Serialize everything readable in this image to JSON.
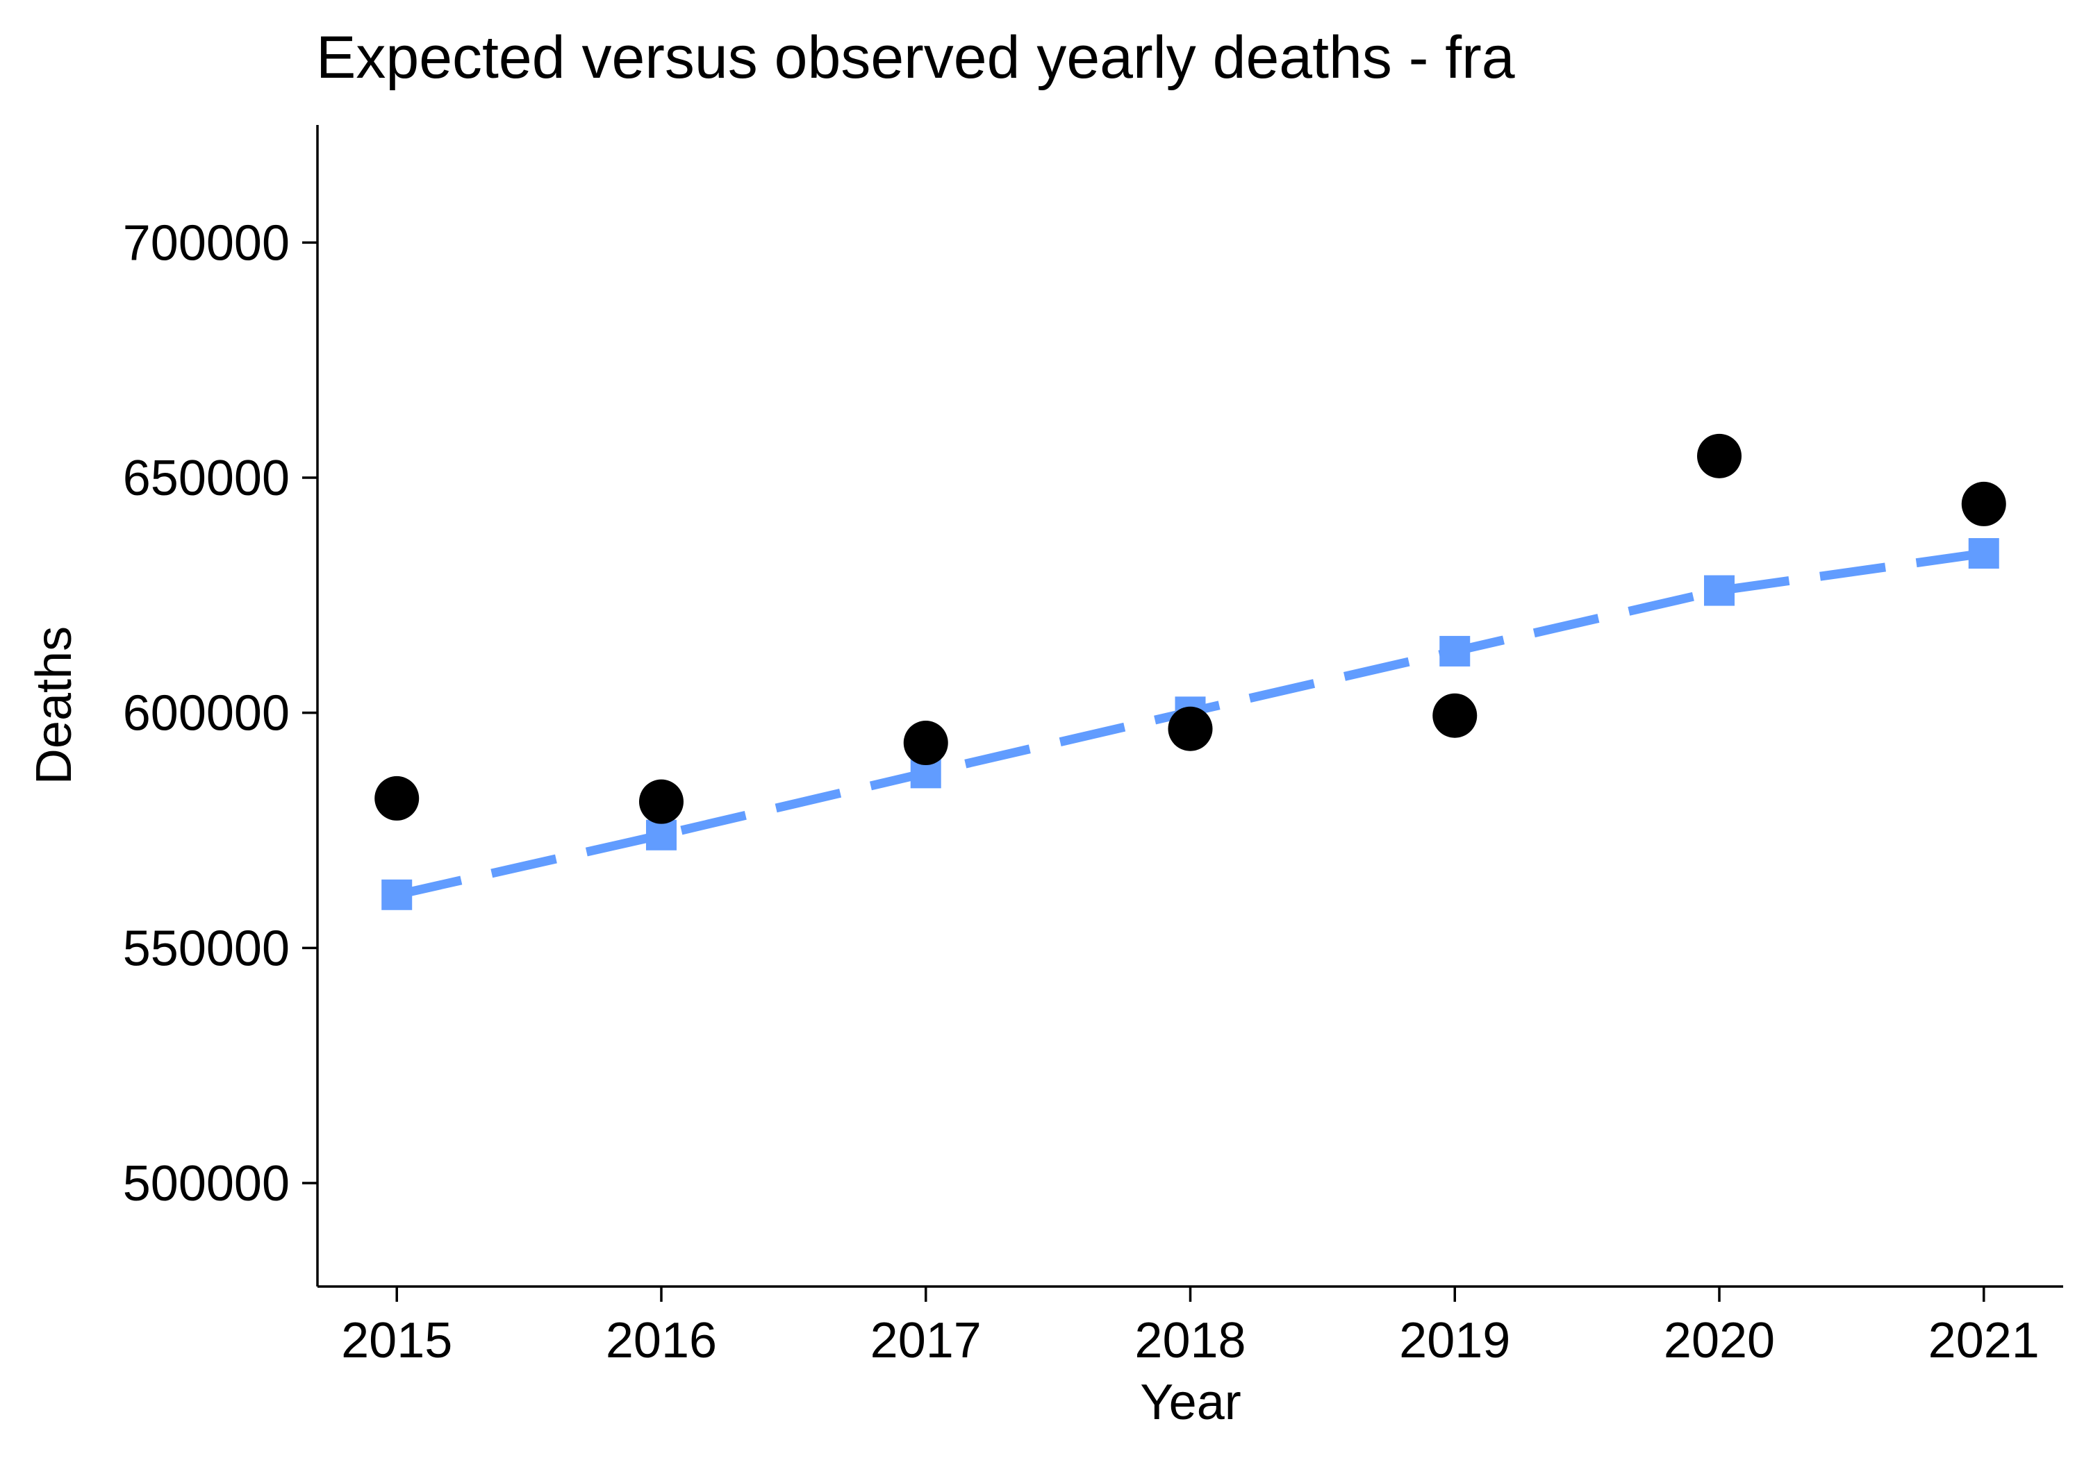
{
  "chart_data": {
    "type": "line",
    "title": "Expected versus observed yearly deaths - fra",
    "xlabel": "Year",
    "ylabel": "Deaths",
    "categories": [
      "2015",
      "2016",
      "2017",
      "2018",
      "2019",
      "2020",
      "2021"
    ],
    "x": [
      2015,
      2016,
      2017,
      2018,
      2019,
      2020,
      2021
    ],
    "y_ticks": [
      500000,
      550000,
      600000,
      650000,
      700000
    ],
    "ylim": [
      478000,
      725000
    ],
    "xlim": [
      2014.7,
      2021.3
    ],
    "grid": false,
    "series": [
      {
        "style": "points",
        "marker": "circle",
        "color": "#000000",
        "values": [
          581800,
          581100,
          593600,
          596600,
          599400,
          654600,
          644400
        ]
      },
      {
        "style": "dashed-line",
        "marker": "square",
        "color": "#619CFF",
        "values": [
          561300,
          574000,
          587200,
          600200,
          613100,
          626000,
          633900
        ]
      }
    ]
  }
}
